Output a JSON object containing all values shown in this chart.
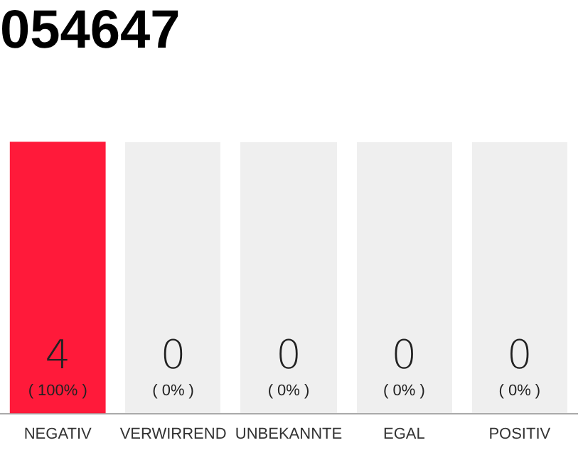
{
  "chart_data": {
    "type": "bar",
    "title": "054647",
    "categories": [
      "NEGATIV",
      "VERWIRREND",
      "UNBEKANNTE",
      "EGAL",
      "POSITIV"
    ],
    "values": [
      4,
      0,
      0,
      0,
      0
    ],
    "colors": [
      "#ff1a3a",
      "#ff1a3a",
      "#ff1a3a",
      "#ff1a3a",
      "#ff1a3a"
    ],
    "value_labels": [
      "4 ( 100% )",
      "0 ( 0% )",
      "0 ( 0% )",
      "0 ( 0% )",
      "0 ( 0% )"
    ],
    "ylim": [
      0,
      4
    ],
    "tick_labels": "x",
    "grid": false,
    "legend": false
  }
}
